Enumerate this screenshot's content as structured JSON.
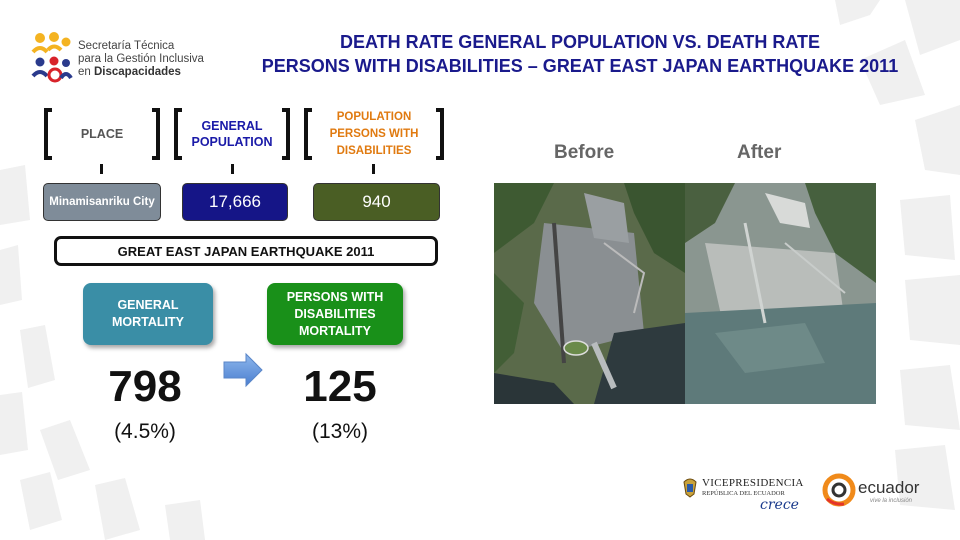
{
  "logo": {
    "line1": "Secretaría Técnica",
    "line2": "para la Gestión Inclusiva",
    "line3_prefix": "en ",
    "line3_bold": "Discapacidades"
  },
  "title": {
    "line1": "DEATH RATE GENERAL POPULATION VS. DEATH RATE",
    "line2": "PERSONS WITH DISABILITIES – GREAT EAST JAPAN EARTHQUAKE 2011"
  },
  "headers": {
    "place": "PLACE",
    "general_population": "GENERAL POPULATION",
    "population_disabilities": "POPULATION PERSONS WITH DISABILITIES"
  },
  "values": {
    "place": "Minamisanriku City",
    "general_population": "17,666",
    "population_disabilities": "940"
  },
  "banner": "GREAT EAST JAPAN EARTHQUAKE 2011",
  "mortality": {
    "general_label": "GENERAL MORTALITY",
    "general_value": "798",
    "general_pct": "(4.5%)",
    "disabilities_label": "PERSONS WITH DISABILITIES MORTALITY",
    "disabilities_value": "125",
    "disabilities_pct": "(13%)"
  },
  "photos": {
    "before_label": "Before",
    "after_label": "After"
  },
  "footer": {
    "vp_line1": "VICEPRESIDENCIA",
    "vp_line2": "REPÚBLICA DEL ECUADOR",
    "vp_script": "crece",
    "ecuador": "ecuador",
    "ecuador_tag": "vive la inclusión"
  },
  "colors": {
    "title": "#1a1a8c",
    "general_header": "#1a1aa8",
    "disab_header": "#e07a10",
    "place_box": "#7f8c99",
    "general_box": "#151587",
    "disab_box": "#4a5e24",
    "general_mort": "#3a8ea6",
    "disab_mort": "#199019"
  }
}
